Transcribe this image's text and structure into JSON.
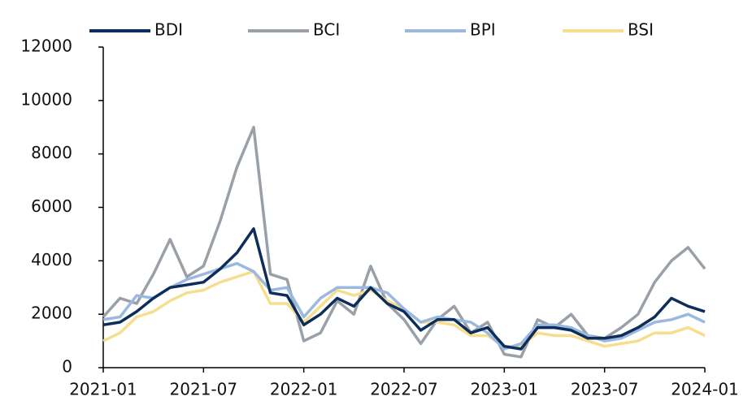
{
  "chart_data": {
    "type": "line",
    "categories": [
      "2021-01",
      null,
      null,
      null,
      null,
      null,
      "2021-07",
      null,
      null,
      null,
      null,
      null,
      "2022-01",
      null,
      null,
      null,
      null,
      null,
      "2022-07",
      null,
      null,
      null,
      null,
      null,
      "2023-01",
      null,
      null,
      null,
      null,
      null,
      "2023-07",
      null,
      null,
      null,
      null,
      null,
      "2024-01"
    ],
    "series": [
      {
        "name": "BDI",
        "color": "#0d2d5a",
        "values": [
          1600,
          1700,
          2100,
          2600,
          3000,
          3100,
          3200,
          3700,
          4300,
          5200,
          2800,
          2700,
          1600,
          2000,
          2600,
          2300,
          3000,
          2400,
          2100,
          1400,
          1800,
          1800,
          1300,
          1500,
          800,
          700,
          1500,
          1500,
          1400,
          1100,
          1100,
          1200,
          1500,
          1900,
          2600,
          2300,
          2100
        ]
      },
      {
        "name": "BCI",
        "color": "#9aa0a8",
        "values": [
          1900,
          2600,
          2400,
          3500,
          4800,
          3400,
          3800,
          5500,
          7500,
          9000,
          3500,
          3300,
          1000,
          1300,
          2500,
          2000,
          3800,
          2400,
          1800,
          900,
          1800,
          2300,
          1300,
          1700,
          500,
          400,
          1800,
          1500,
          2000,
          1200,
          1100,
          1500,
          2000,
          3200,
          4000,
          4500,
          3700
        ]
      },
      {
        "name": "BPI",
        "color": "#9ab8e0",
        "values": [
          1800,
          1900,
          2700,
          2600,
          3000,
          3300,
          3500,
          3700,
          3900,
          3600,
          2900,
          3000,
          1900,
          2600,
          3000,
          3000,
          3000,
          2800,
          2200,
          1700,
          1900,
          1800,
          1700,
          1300,
          700,
          900,
          1600,
          1600,
          1500,
          1200,
          1000,
          1100,
          1400,
          1700,
          1800,
          2000,
          1700
        ]
      },
      {
        "name": "BSI",
        "color": "#f5df8e",
        "values": [
          1000,
          1300,
          1900,
          2100,
          2500,
          2800,
          2900,
          3200,
          3400,
          3600,
          2400,
          2400,
          1700,
          2300,
          2900,
          2700,
          2900,
          2500,
          2200,
          1700,
          1700,
          1600,
          1200,
          1200,
          800,
          800,
          1300,
          1200,
          1200,
          1000,
          800,
          900,
          1000,
          1300,
          1300,
          1500,
          1200
        ]
      }
    ],
    "ylim": [
      0,
      12000
    ],
    "yticks": [
      0,
      2000,
      4000,
      6000,
      8000,
      10000,
      12000
    ],
    "legend": "top"
  }
}
